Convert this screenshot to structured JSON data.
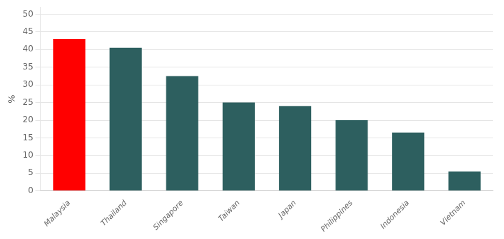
{
  "chart_data": {
    "type": "bar",
    "categories": [
      "Malaysia",
      "Thailand",
      "Singapore",
      "Taiwan",
      "Japan",
      "Philippines",
      "Indonesia",
      "Vietnam"
    ],
    "values": [
      43,
      40.5,
      32.5,
      25,
      24,
      20,
      16.5,
      5.5
    ],
    "colors": [
      "#ff0000",
      "#2d5f5f",
      "#2d5f5f",
      "#2d5f5f",
      "#2d5f5f",
      "#2d5f5f",
      "#2d5f5f",
      "#2d5f5f"
    ],
    "ylabel": "%",
    "ylim": [
      0,
      52
    ],
    "yticks": [
      0,
      5,
      10,
      15,
      20,
      25,
      30,
      35,
      40,
      45,
      50
    ],
    "grid": true
  }
}
